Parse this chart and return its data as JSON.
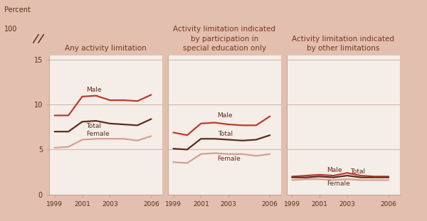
{
  "years": [
    1999,
    2000,
    2001,
    2002,
    2003,
    2004,
    2005,
    2006
  ],
  "panel1": {
    "title": "Any activity limitation",
    "male": [
      8.8,
      8.8,
      10.9,
      11.0,
      10.5,
      10.5,
      10.4,
      11.1
    ],
    "total": [
      7.0,
      7.0,
      8.1,
      8.2,
      7.9,
      7.8,
      7.7,
      8.4
    ],
    "female": [
      5.2,
      5.3,
      6.1,
      6.2,
      6.2,
      6.2,
      6.0,
      6.5
    ]
  },
  "panel2": {
    "title": "Activity limitation indicated\nby participation in\nspecial education only",
    "male": [
      6.9,
      6.6,
      7.9,
      8.0,
      7.8,
      7.7,
      7.7,
      8.7
    ],
    "total": [
      5.1,
      5.0,
      6.2,
      6.2,
      6.1,
      6.0,
      6.1,
      6.6
    ],
    "female": [
      3.6,
      3.5,
      4.5,
      4.6,
      4.5,
      4.5,
      4.3,
      4.5
    ]
  },
  "panel3": {
    "title": "Activity limitation indicated\nby other limitations",
    "male": [
      2.0,
      2.1,
      2.2,
      2.1,
      2.4,
      2.1,
      2.0,
      2.0
    ],
    "total": [
      1.9,
      1.9,
      2.0,
      1.9,
      2.1,
      1.9,
      1.9,
      1.9
    ],
    "female": [
      1.6,
      1.7,
      1.7,
      1.6,
      1.7,
      1.6,
      1.6,
      1.6
    ]
  },
  "color_male": "#c0392b",
  "color_total": "#5a2d1a",
  "color_female": "#d4a090",
  "bg_color": "#e2bfae",
  "panel_bg": "#f5ede8",
  "title_color": "#7a3520",
  "label_color": "#5a2d1a",
  "grid_color": "#c8a898",
  "spine_color": "#c8a898"
}
